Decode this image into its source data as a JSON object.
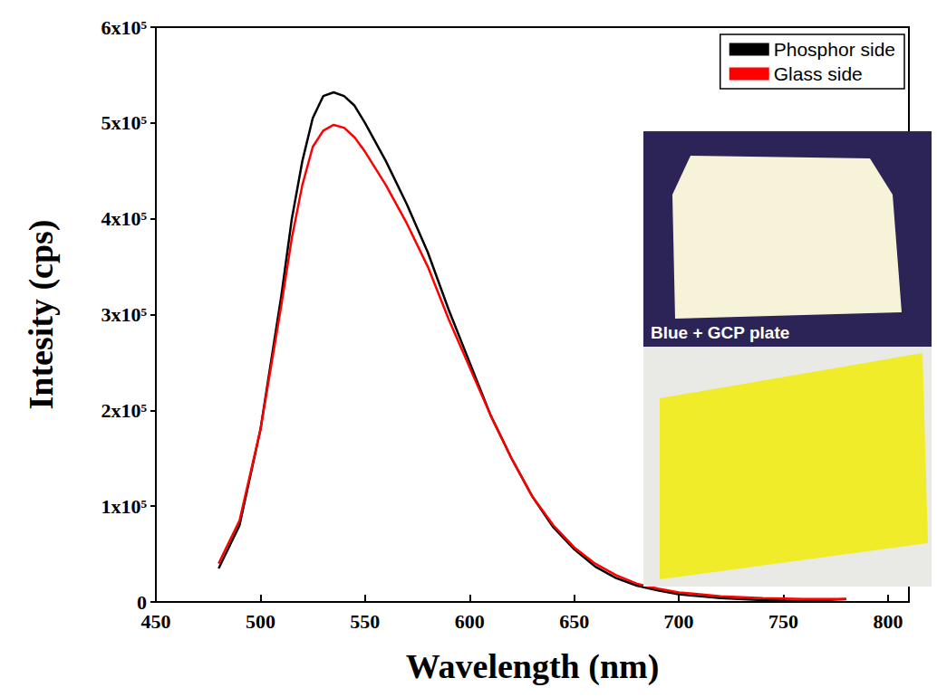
{
  "chart_data": {
    "type": "line",
    "x_label": "Wavelength (nm)",
    "y_label": "Intesity (cps)",
    "x": [
      480,
      490,
      500,
      510,
      515,
      520,
      525,
      530,
      535,
      540,
      545,
      550,
      560,
      570,
      580,
      590,
      600,
      610,
      620,
      630,
      640,
      650,
      660,
      670,
      680,
      690,
      700,
      720,
      740,
      760,
      780
    ],
    "series": [
      {
        "name": "Phosphor side",
        "color": "#000000",
        "line_style": "solid",
        "values": [
          35000,
          80000,
          180000,
          320000,
          400000,
          460000,
          505000,
          528000,
          532000,
          528000,
          518000,
          500000,
          460000,
          415000,
          365000,
          305000,
          250000,
          195000,
          150000,
          110000,
          78000,
          55000,
          37000,
          25000,
          17000,
          12000,
          8000,
          4000,
          2000,
          1000,
          3000
        ]
      },
      {
        "name": "Glass side",
        "color": "#ff0000",
        "line_style": "solid",
        "values": [
          40000,
          85000,
          180000,
          310000,
          380000,
          435000,
          475000,
          492000,
          498000,
          495000,
          485000,
          470000,
          435000,
          395000,
          350000,
          295000,
          245000,
          195000,
          150000,
          110000,
          80000,
          57000,
          40000,
          28000,
          19000,
          14000,
          10000,
          6000,
          4000,
          3000,
          3000
        ]
      }
    ],
    "xlim": [
      450,
      810
    ],
    "xticks": [
      450,
      500,
      550,
      600,
      650,
      700,
      750,
      800
    ],
    "ylim": [
      0,
      600000
    ],
    "yticks": [
      0,
      {
        "value": 100000,
        "label": "1x10⁵"
      },
      {
        "value": 200000,
        "label": "2x10⁵"
      },
      {
        "value": 300000,
        "label": "3x10⁵"
      },
      {
        "value": 400000,
        "label": "4x10⁵"
      },
      {
        "value": 500000,
        "label": "5x10⁵"
      },
      {
        "value": 600000,
        "label": "6x10⁵"
      }
    ],
    "legend": "top-right",
    "grid": false,
    "annotations": [
      {
        "text": "Blue + GCP plate"
      }
    ]
  }
}
